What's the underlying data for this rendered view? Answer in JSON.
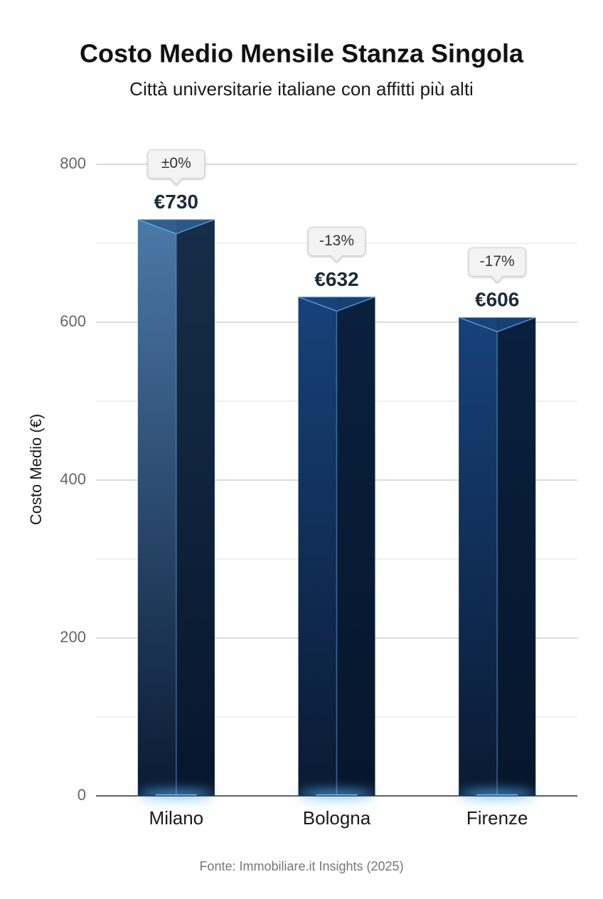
{
  "chart_data": {
    "type": "bar",
    "title": "Costo Medio Mensile Stanza Singola",
    "subtitle": "Città universitarie italiane con affitti più alti",
    "y_label": "Costo Medio (€)",
    "source": "Fonte: Immobiliare.it Insights (2025)",
    "categories": [
      "Milano",
      "Bologna",
      "Firenze"
    ],
    "values": [
      730,
      632,
      606
    ],
    "value_labels": [
      "€730",
      "€632",
      "€606"
    ],
    "change_labels": [
      "±0%",
      "-13%",
      "-17%"
    ],
    "color": "#17427a",
    "highlight_color": "#4b79a8",
    "ylim": [
      0,
      800
    ],
    "yticks": [
      0,
      200,
      400,
      600,
      800
    ],
    "minor_grid": [
      100,
      300,
      500,
      700
    ],
    "grid": true
  }
}
